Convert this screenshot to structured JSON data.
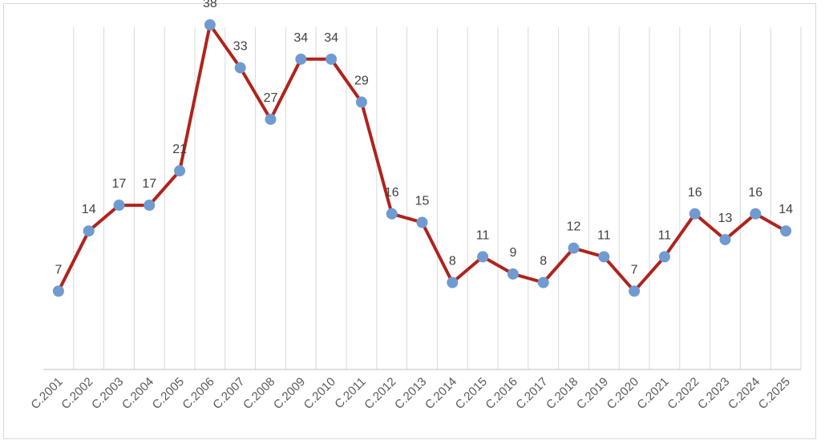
{
  "chart_data": {
    "type": "line",
    "title": "",
    "xlabel": "",
    "ylabel": "",
    "categories": [
      "C.2001",
      "C.2002",
      "C.2003",
      "C.2004",
      "C.2005",
      "C.2006",
      "C.2007",
      "C.2008",
      "C.2009",
      "C.2010",
      "C.2011",
      "C.2012",
      "C.2013",
      "C.2014",
      "C.2015",
      "C.2016",
      "C.2017",
      "C.2018",
      "C.2019",
      "C.2020",
      "C.2021",
      "C.2022",
      "C.2023",
      "C.2024",
      "C.2025"
    ],
    "series": [
      {
        "values": [
          7,
          14,
          17,
          17,
          21,
          38,
          33,
          27,
          34,
          34,
          29,
          16,
          15,
          8,
          11,
          9,
          8,
          12,
          11,
          7,
          11,
          16,
          13,
          16,
          14
        ]
      }
    ],
    "ylim": [
      0,
      38
    ],
    "grid": "vertical",
    "legend": "none",
    "colors": {
      "line": "#b0231c",
      "marker": "#6f9bd1",
      "grid": "#d9d9d9",
      "axis": "#bfbfbf"
    }
  }
}
